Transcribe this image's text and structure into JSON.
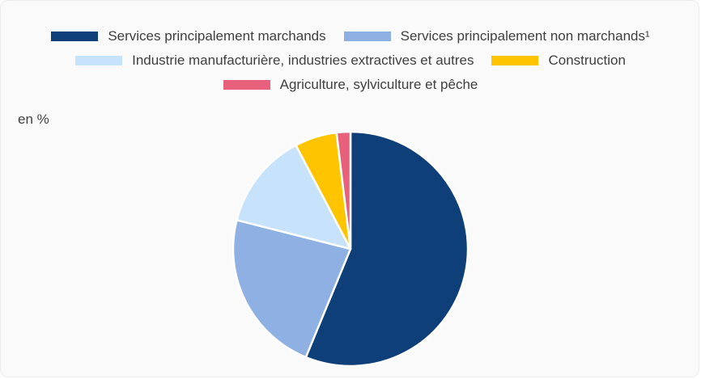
{
  "unit_label": "en %",
  "chart_data": {
    "type": "pie",
    "title": "",
    "legend_position": "top",
    "series": [
      {
        "name": "Services principalement marchands",
        "value": 56.1,
        "color": "#0f3f78"
      },
      {
        "name": "Services principalement non marchands¹",
        "value": 22.7,
        "color": "#8fb0e2"
      },
      {
        "name": "Industrie manufacturière, industries extractives et autres",
        "value": 13.3,
        "color": "#c7e2fb"
      },
      {
        "name": "Construction",
        "value": 5.8,
        "color": "#ffc400"
      },
      {
        "name": "Agriculture, sylviculture et pêche",
        "value": 1.9,
        "color": "#e8617c"
      }
    ]
  }
}
